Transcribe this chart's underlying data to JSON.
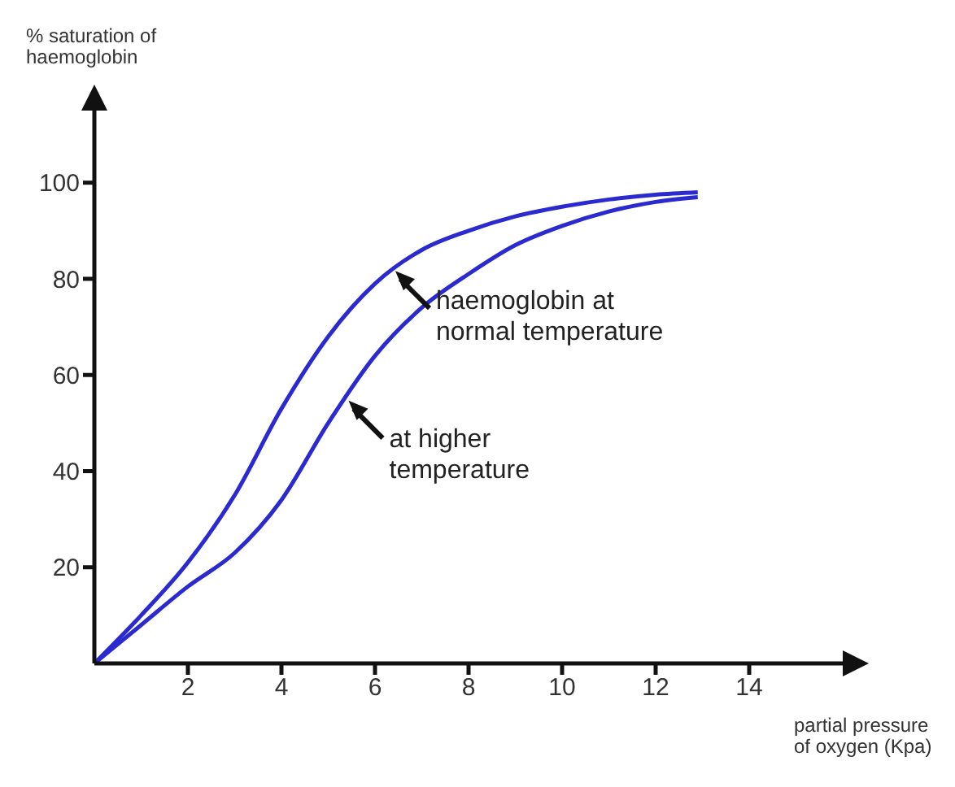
{
  "chart_data": {
    "type": "line",
    "xlabel": "partial pressure of oxygen (Kpa)",
    "ylabel": "% saturation of haemoglobin",
    "x": [
      0,
      1,
      2,
      3,
      4,
      5,
      6,
      7,
      8,
      9,
      10,
      11,
      12,
      12.9
    ],
    "series": [
      {
        "color": "#2a2ad0",
        "values": [
          0,
          10,
          21,
          35,
          53,
          68,
          79,
          86,
          90,
          93,
          95,
          96.5,
          97.5,
          98
        ]
      },
      {
        "color": "#2a2ad0",
        "values": [
          0,
          8,
          16,
          23,
          34,
          50,
          64,
          74,
          81,
          87,
          91,
          94,
          96,
          97
        ]
      }
    ],
    "xlim": [
      0,
      16
    ],
    "ylim": [
      0,
      115
    ],
    "xticks": [
      2,
      4,
      6,
      8,
      10,
      12,
      14
    ],
    "yticks": [
      20,
      40,
      60,
      80,
      100
    ],
    "annotations": [
      {
        "text": "haemoglobin at normal temperature",
        "x": 6.4,
        "y": 82
      },
      {
        "text": "at higher temperature",
        "x": 5.4,
        "y": 55
      }
    ]
  }
}
